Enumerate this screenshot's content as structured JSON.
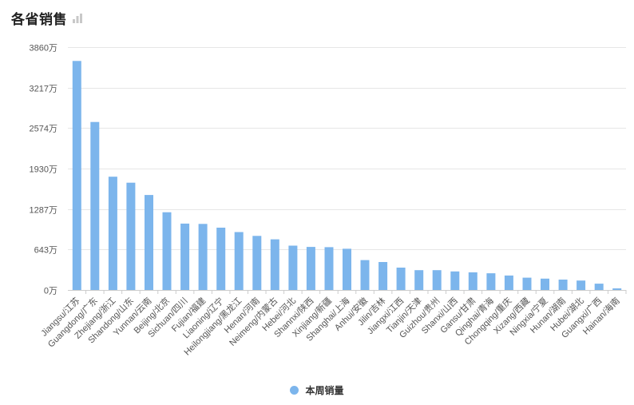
{
  "header": {
    "title": "各省销售",
    "export_icon": "bar-chart-download-icon"
  },
  "colors": {
    "bar": "#7cb5ec",
    "grid": "#e6e6e6",
    "axis": "#cccccc",
    "text": "#555555"
  },
  "chart_data": {
    "type": "bar",
    "title": "各省销售",
    "categories": [
      "Jiangsu/江苏",
      "Guangdong/广东",
      "Zhejiang/浙江",
      "Shandong/山东",
      "Yunnan/云南",
      "Beijing/北京",
      "Sichuan/四川",
      "Fujian/福建",
      "Liaoning/辽宁",
      "Heilongjiang/黑龙江",
      "Henan/河南",
      "Neimeng/内蒙古",
      "Hebei/河北",
      "Shannxi/陕西",
      "Xinjiang/新疆",
      "Shanghai/上海",
      "Anhui/安徽",
      "Jilin/吉林",
      "Jiangxi/江西",
      "Tianjin/天津",
      "Guizhou/贵州",
      "Shanxi/山西",
      "Gansu/甘肃",
      "Qinghai/青海",
      "Chongqing/重庆",
      "Xizang/西藏",
      "Ningxia/宁夏",
      "Hunan/湖南",
      "Hubei/湖北",
      "Guangxi/广西",
      "Hainan/海南"
    ],
    "series": [
      {
        "name": "本周销量",
        "values": [
          3640,
          2670,
          1800,
          1705,
          1510,
          1235,
          1055,
          1050,
          990,
          920,
          860,
          805,
          705,
          685,
          680,
          655,
          475,
          445,
          355,
          315,
          315,
          295,
          280,
          265,
          230,
          195,
          180,
          165,
          150,
          100,
          25
        ]
      }
    ],
    "yticks": [
      0,
      643,
      1287,
      1930,
      2574,
      3217,
      3860
    ],
    "ytick_suffix": "万",
    "ylim": [
      0,
      3860
    ],
    "grid": true,
    "legend": "bottom-center"
  }
}
